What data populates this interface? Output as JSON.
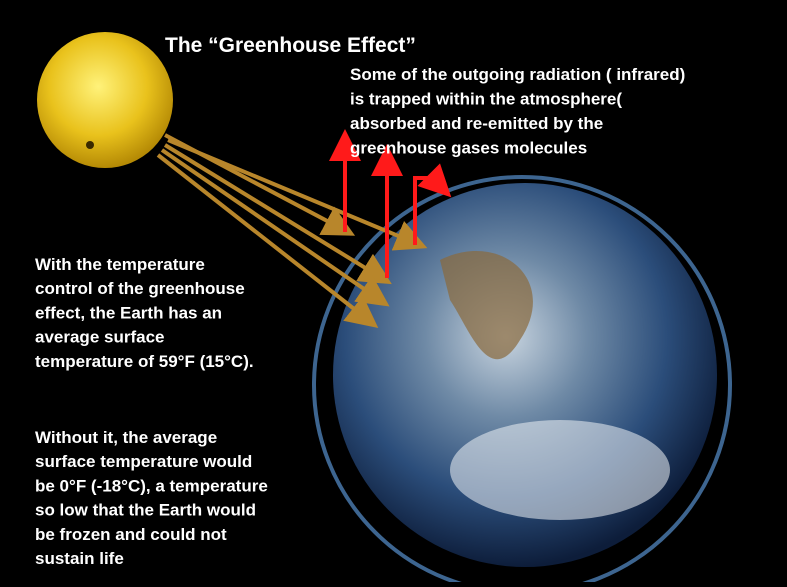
{
  "title": "The “Greenhouse Effect”",
  "top_note": {
    "lines": [
      "Some of the outgoing radiation ( infrared)",
      "is trapped within the atmosphere(",
      "absorbed and re-emitted   by the",
      "greenhouse gases molecules"
    ]
  },
  "left_note": {
    "lines": [
      "With the temperature",
      "control of the greenhouse",
      "effect, the Earth has an",
      "average surface",
      "temperature of 59°F (15°C)."
    ]
  },
  "bottom_note": {
    "lines": [
      "Without it, the average",
      "surface temperature would",
      "be 0°F (-18°C), a temperature",
      "so low that the Earth would",
      "be frozen and could not",
      "sustain life"
    ]
  }
}
